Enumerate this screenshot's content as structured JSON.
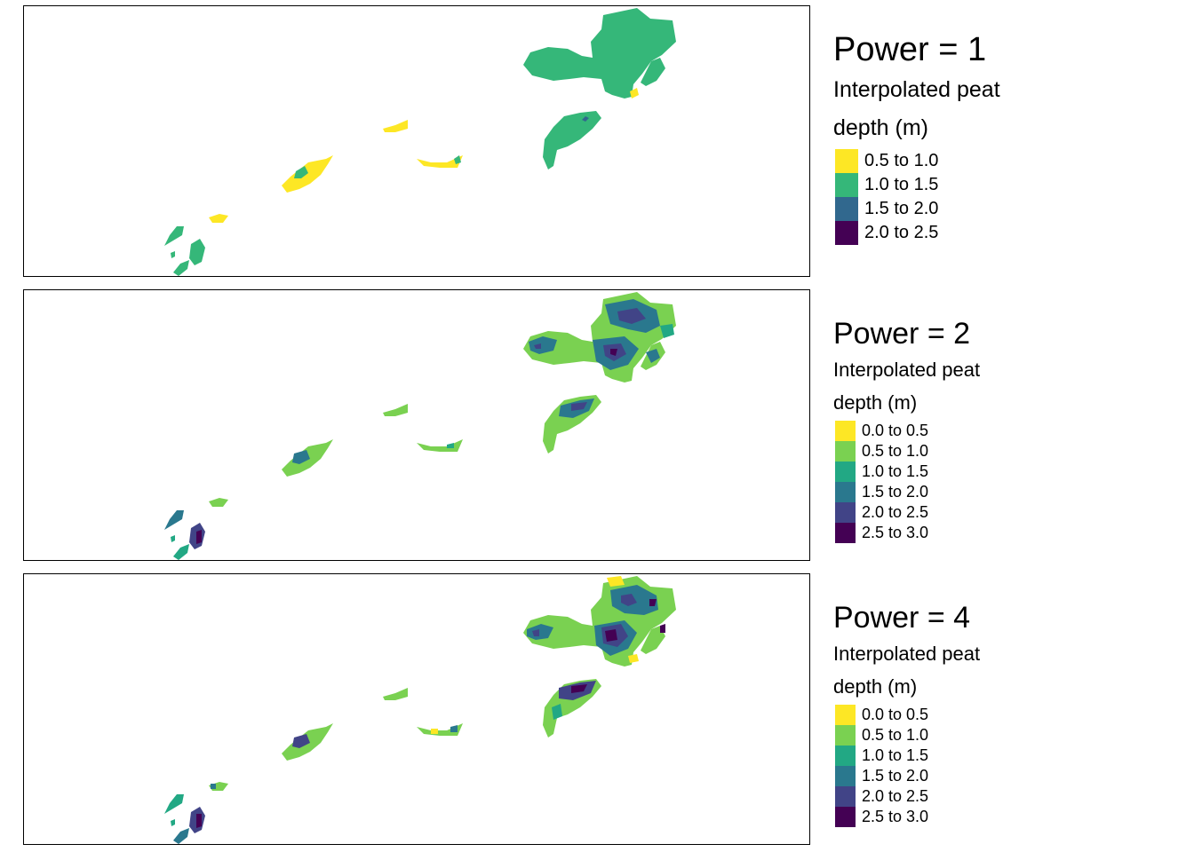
{
  "panels": [
    {
      "title": "Power = 1",
      "legend_title_line1": "Interpolated peat",
      "legend_title_line2": "depth (m)",
      "legend_items": [
        {
          "label": "0.5 to 1.0",
          "color": "#FDE725"
        },
        {
          "label": "1.0 to 1.5",
          "color": "#35B779"
        },
        {
          "label": "1.5 to 2.0",
          "color": "#31688E"
        },
        {
          "label": "2.0 to 2.5",
          "color": "#440154"
        }
      ]
    },
    {
      "title": "Power = 2",
      "legend_title_line1": "Interpolated peat",
      "legend_title_line2": "depth (m)",
      "legend_items": [
        {
          "label": "0.0 to 0.5",
          "color": "#FDE725"
        },
        {
          "label": "0.5 to 1.0",
          "color": "#7AD151"
        },
        {
          "label": "1.0 to 1.5",
          "color": "#22A884"
        },
        {
          "label": "1.5 to 2.0",
          "color": "#2A788E"
        },
        {
          "label": "2.0 to 2.5",
          "color": "#414487"
        },
        {
          "label": "2.5 to 3.0",
          "color": "#440154"
        }
      ]
    },
    {
      "title": "Power = 4",
      "legend_title_line1": "Interpolated peat",
      "legend_title_line2": "depth (m)",
      "legend_items": [
        {
          "label": "0.0 to 0.5",
          "color": "#FDE725"
        },
        {
          "label": "0.5 to 1.0",
          "color": "#7AD151"
        },
        {
          "label": "1.0 to 1.5",
          "color": "#22A884"
        },
        {
          "label": "1.5 to 2.0",
          "color": "#2A788E"
        },
        {
          "label": "2.0 to 2.5",
          "color": "#414487"
        },
        {
          "label": "2.5 to 3.0",
          "color": "#440154"
        }
      ]
    }
  ]
}
